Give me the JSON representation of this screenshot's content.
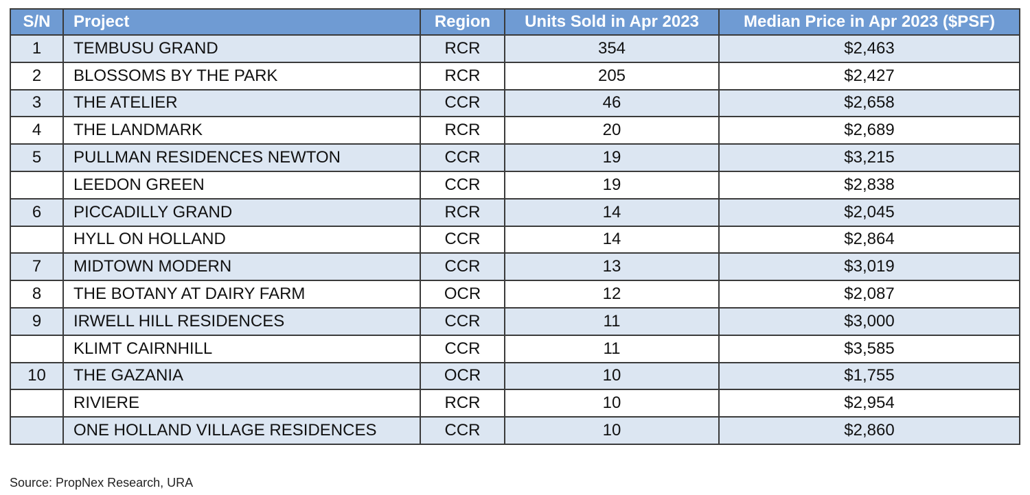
{
  "table": {
    "header": [
      "S/N",
      "Project",
      "Region",
      "Units Sold in Apr 2023",
      "Median Price in Apr 2023 ($PSF)"
    ],
    "rows": [
      [
        "1",
        "TEMBUSU GRAND",
        "RCR",
        "354",
        "$2,463"
      ],
      [
        "2",
        "BLOSSOMS BY THE PARK",
        "RCR",
        "205",
        "$2,427"
      ],
      [
        "3",
        "THE ATELIER",
        "CCR",
        "46",
        "$2,658"
      ],
      [
        "4",
        "THE LANDMARK",
        "RCR",
        "20",
        "$2,689"
      ],
      [
        "5",
        "PULLMAN RESIDENCES NEWTON",
        "CCR",
        "19",
        "$3,215"
      ],
      [
        null,
        "LEEDON GREEN",
        "CCR",
        "19",
        "$2,838"
      ],
      [
        "6",
        "PICCADILLY GRAND",
        "RCR",
        "14",
        "$2,045"
      ],
      [
        null,
        "HYLL ON HOLLAND",
        "CCR",
        "14",
        "$2,864"
      ],
      [
        "7",
        "MIDTOWN MODERN",
        "CCR",
        "13",
        "$3,019"
      ],
      [
        "8",
        "THE BOTANY AT DAIRY FARM",
        "OCR",
        "12",
        "$2,087"
      ],
      [
        "9",
        "IRWELL HILL RESIDENCES",
        "CCR",
        "11",
        "$3,000"
      ],
      [
        null,
        "KLIMT CAIRNHILL",
        "CCR",
        "11",
        "$3,585"
      ],
      [
        "10",
        "THE GAZANIA",
        "OCR",
        "10",
        "$1,755"
      ],
      [
        null,
        "RIVIERE",
        "RCR",
        "10",
        "$2,954"
      ],
      [
        null,
        "ONE HOLLAND VILLAGE RESIDENCES",
        "CCR",
        "10",
        "$2,860"
      ]
    ]
  },
  "footer": {
    "source": "Source: PropNex Research, URA"
  }
}
